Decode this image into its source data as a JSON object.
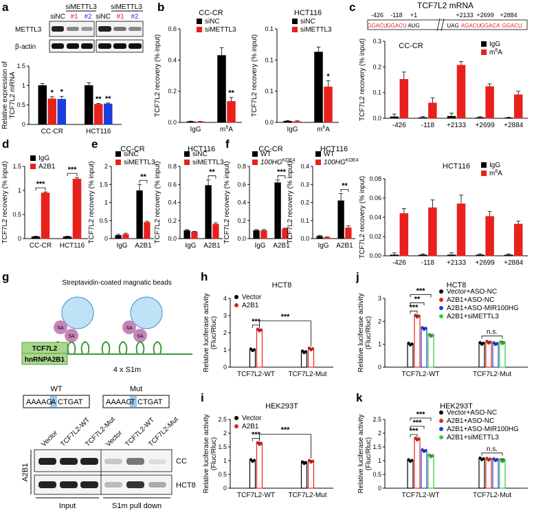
{
  "panel_letters": [
    "a",
    "b",
    "c",
    "d",
    "e",
    "f",
    "g",
    "h",
    "i",
    "j",
    "k"
  ],
  "colors": {
    "black": "#000000",
    "red": "#e8211d",
    "blue": "#1a3ee0",
    "green": "#33cc33",
    "gray": "#f1f1f1"
  },
  "chart_data": [
    {
      "id": "a",
      "type": "bar",
      "title": "",
      "ylabel": "Relative expression of TCF7L2 mRNA",
      "categories": [
        "CC-CR",
        "HCT116"
      ],
      "ylim": [
        0,
        1.5
      ],
      "yticks": [
        0,
        0.5,
        1.0,
        1.5
      ],
      "series": [
        {
          "name": "siNC",
          "color": "#000000",
          "values": [
            1.0,
            1.0
          ],
          "err": [
            0.05,
            0.07
          ]
        },
        {
          "name": "#1",
          "color": "#e8211d",
          "values": [
            0.66,
            0.52
          ],
          "err": [
            0.05,
            0.02
          ],
          "sig": [
            "*",
            "**"
          ]
        },
        {
          "name": "#2",
          "color": "#1a3ee0",
          "values": [
            0.65,
            0.53
          ],
          "err": [
            0.07,
            0.02
          ],
          "sig": [
            "*",
            "**"
          ]
        }
      ]
    },
    {
      "id": "b1",
      "type": "bar",
      "title": "CC-CR",
      "ylabel": "TCF7L2 recovery (% input)",
      "categories": [
        "IgG",
        "m6A"
      ],
      "ylim": [
        0,
        0.6
      ],
      "yticks": [
        0.0,
        0.2,
        0.4,
        0.6
      ],
      "series": [
        {
          "name": "siNC",
          "color": "#000000",
          "values": [
            0.005,
            0.43
          ],
          "err": [
            0.003,
            0.05
          ]
        },
        {
          "name": "siMETTL3",
          "color": "#e8211d",
          "values": [
            0.004,
            0.135
          ],
          "err": [
            0.002,
            0.025
          ],
          "sig": [
            "",
            "**"
          ]
        }
      ]
    },
    {
      "id": "b2",
      "type": "bar",
      "title": "HCT116",
      "ylabel": "TCF7L2 recovery (% input)",
      "categories": [
        "IgG",
        "m6A"
      ],
      "ylim": [
        0,
        0.15
      ],
      "yticks": [
        0.0,
        0.05,
        0.1,
        0.15
      ],
      "series": [
        {
          "name": "siNC",
          "color": "#000000",
          "values": [
            0.002,
            0.113
          ],
          "err": [
            0.001,
            0.008
          ]
        },
        {
          "name": "siMETTL3",
          "color": "#e8211d",
          "values": [
            0.0015,
            0.057
          ],
          "err": [
            0.001,
            0.01
          ],
          "sig": [
            "",
            "*"
          ]
        }
      ]
    },
    {
      "id": "c1",
      "type": "bar",
      "title": "CC-CR",
      "ylabel": "TCF7L2 recovery (% input)",
      "categories": [
        "-426",
        "-118",
        "+2133",
        "+2699",
        "+2884"
      ],
      "ylim": [
        0,
        0.3
      ],
      "yticks": [
        0.0,
        0.1,
        0.2,
        0.3
      ],
      "series": [
        {
          "name": "IgG",
          "color": "#000000",
          "values": [
            0.006,
            0.003,
            0.008,
            0.003,
            0.002
          ],
          "err": [
            0.01,
            0.004,
            0.012,
            0.003,
            0.002
          ]
        },
        {
          "name": "m6A",
          "color": "#e8211d",
          "values": [
            0.152,
            0.06,
            0.207,
            0.124,
            0.092
          ],
          "err": [
            0.028,
            0.02,
            0.014,
            0.01,
            0.013
          ]
        }
      ]
    },
    {
      "id": "c2",
      "type": "bar",
      "title": "HCT116",
      "ylabel": "TCF7L2 recovery (% input)",
      "categories": [
        "-426",
        "-118",
        "+2133",
        "+2699",
        "+2884"
      ],
      "ylim": [
        0,
        0.08
      ],
      "yticks": [
        0.0,
        0.02,
        0.04,
        0.06,
        0.08
      ],
      "series": [
        {
          "name": "IgG",
          "color": "#000000",
          "values": [
            0.001,
            0.001,
            0.001,
            0.001,
            0.001
          ],
          "err": [
            0.002,
            0.001,
            0.002,
            0.001,
            0.001
          ]
        },
        {
          "name": "m6A",
          "color": "#e8211d",
          "values": [
            0.044,
            0.05,
            0.054,
            0.041,
            0.033
          ],
          "err": [
            0.005,
            0.008,
            0.009,
            0.005,
            0.003
          ]
        }
      ]
    },
    {
      "id": "d",
      "type": "bar",
      "title": "",
      "ylabel": "TCF7L2 recovery (% input)",
      "categories": [
        "CC-CR",
        "HCT116"
      ],
      "ylim": [
        0,
        1.5
      ],
      "yticks": [
        0.0,
        0.5,
        1.0,
        1.5
      ],
      "series": [
        {
          "name": "IgG",
          "color": "#000000",
          "values": [
            0.04,
            0.04
          ],
          "err": [
            0.01,
            0.01
          ]
        },
        {
          "name": "A2B1",
          "color": "#e8211d",
          "values": [
            0.95,
            1.24
          ],
          "err": [
            0.02,
            0.03
          ]
        }
      ],
      "brackets": [
        "***",
        "***"
      ]
    },
    {
      "id": "e1",
      "type": "bar",
      "title": "CC-CR",
      "ylabel": "TCF7L2 recovery (% input)",
      "categories": [
        "IgG",
        "A2B1"
      ],
      "ylim": [
        0,
        2.0
      ],
      "yticks": [
        0.0,
        0.5,
        1.0,
        1.5,
        2.0
      ],
      "series": [
        {
          "name": "siNC",
          "color": "#000000",
          "values": [
            0.09,
            1.33
          ],
          "err": [
            0.03,
            0.17
          ]
        },
        {
          "name": "siMETTL3",
          "color": "#e8211d",
          "values": [
            0.12,
            0.45
          ],
          "err": [
            0.03,
            0.03
          ]
        }
      ],
      "brackets": [
        "",
        "**"
      ]
    },
    {
      "id": "e2",
      "type": "bar",
      "title": "HCT116",
      "ylabel": "TCF7L2 recovery (% input)",
      "categories": [
        "IgG",
        "A2B1"
      ],
      "ylim": [
        0,
        0.8
      ],
      "yticks": [
        0.0,
        0.2,
        0.4,
        0.6,
        0.8
      ],
      "series": [
        {
          "name": "siNC",
          "color": "#000000",
          "values": [
            0.09,
            0.59
          ],
          "err": [
            0.01,
            0.06
          ]
        },
        {
          "name": "siMETTL3",
          "color": "#e8211d",
          "values": [
            0.075,
            0.16
          ],
          "err": [
            0.005,
            0.015
          ]
        }
      ],
      "brackets": [
        "",
        "**"
      ]
    },
    {
      "id": "f1",
      "type": "bar",
      "title": "CC-CR",
      "ylabel": "TCF7L2 recovery (% input)",
      "categories": [
        "IgG",
        "A2B1"
      ],
      "ylim": [
        0,
        0.8
      ],
      "yticks": [
        0.0,
        0.2,
        0.4,
        0.6,
        0.8
      ],
      "series": [
        {
          "name": "WT",
          "color": "#000000",
          "values": [
            0.09,
            0.62
          ],
          "err": [
            0.01,
            0.03
          ]
        },
        {
          "name": "100HG KOE4",
          "color": "#e8211d",
          "values": [
            0.09,
            0.11
          ],
          "err": [
            0.01,
            0.005
          ]
        }
      ],
      "brackets": [
        "",
        "***"
      ]
    },
    {
      "id": "f2",
      "type": "bar",
      "title": "HCT116",
      "ylabel": "TCF7L2 recovery (% input)",
      "categories": [
        "IgG",
        "A2B1"
      ],
      "ylim": [
        0,
        0.4
      ],
      "yticks": [
        0.0,
        0.1,
        0.2,
        0.3,
        0.4
      ],
      "series": [
        {
          "name": "WT",
          "color": "#000000",
          "values": [
            0.013,
            0.21
          ],
          "err": [
            0.005,
            0.04
          ]
        },
        {
          "name": "100HG KOE4",
          "color": "#e8211d",
          "values": [
            0.006,
            0.06
          ],
          "err": [
            0.003,
            0.01
          ]
        }
      ],
      "brackets": [
        "",
        "**"
      ]
    },
    {
      "id": "h",
      "type": "bar",
      "title": "HCT8",
      "ylabel": "Relative luciferase activity (Fluc/Rluc)",
      "categories": [
        "TCF7L2-WT",
        "TCF7L2-Mut"
      ],
      "ylim": [
        0,
        4
      ],
      "yticks": [
        0,
        1,
        2,
        3,
        4
      ],
      "series": [
        {
          "name": "Vector",
          "color": "#000000",
          "values": [
            1.0,
            0.88
          ],
          "err": [
            0,
            0.05
          ]
        },
        {
          "name": "A2B1",
          "color": "#e8211d",
          "values": [
            2.15,
            1.05
          ],
          "err": [
            0.06,
            0.04
          ]
        }
      ],
      "brackets": [
        "***"
      ],
      "cross": "***"
    },
    {
      "id": "i",
      "type": "bar",
      "title": "HEK293T",
      "ylabel": "Relative luciferase activity (Fluc/Rluc)",
      "categories": [
        "TCF7L2-WT",
        "TCF7L2-Mut"
      ],
      "ylim": [
        0,
        2.5
      ],
      "yticks": [
        0.0,
        0.5,
        1.0,
        1.5,
        2.0,
        2.5
      ],
      "series": [
        {
          "name": "Vector",
          "color": "#000000",
          "values": [
            1.0,
            0.92
          ],
          "err": [
            0,
            0.05
          ]
        },
        {
          "name": "A2B1",
          "color": "#e8211d",
          "values": [
            1.62,
            0.97
          ],
          "err": [
            0.04,
            0.04
          ]
        }
      ],
      "brackets": [
        "***"
      ],
      "cross": "***"
    },
    {
      "id": "j",
      "type": "bar",
      "title": "HCT8",
      "ylabel": "Relative luciferase activity (Fluc/Rluc)",
      "categories": [
        "TCF7L2-WT",
        "TCF7L2-Mut"
      ],
      "ylim": [
        0,
        3
      ],
      "yticks": [
        0,
        1,
        2,
        3
      ],
      "series": [
        {
          "name": "Vector+ASO-NC",
          "color": "#000000",
          "values": [
            1.0,
            1.03
          ],
          "err": [
            0,
            0.04
          ]
        },
        {
          "name": "A2B1+ASO-NC",
          "color": "#e8211d",
          "values": [
            2.22,
            1.08
          ],
          "err": [
            0.05,
            0.04
          ]
        },
        {
          "name": "A2B1+ASO-MIR100HG",
          "color": "#1a3ee0",
          "values": [
            1.68,
            1.02
          ],
          "err": [
            0.05,
            0.03
          ]
        },
        {
          "name": "A2B1+siMETTL3",
          "color": "#33cc33",
          "values": [
            1.38,
            1.06
          ],
          "err": [
            0.05,
            0.06
          ]
        }
      ],
      "stars": [
        "***",
        "**",
        "***"
      ],
      "ns": "n.s."
    },
    {
      "id": "k",
      "type": "bar",
      "title": "HEK293T",
      "ylabel": "Relative luciferase activity (Fluc/Rluc)",
      "categories": [
        "TCF7L2-WT",
        "TCF7L2-Mut"
      ],
      "ylim": [
        0,
        2.5
      ],
      "yticks": [
        0.0,
        0.5,
        1.0,
        1.5,
        2.0,
        2.5
      ],
      "series": [
        {
          "name": "Vector+ASO-NC",
          "color": "#000000",
          "values": [
            1.0,
            1.06
          ],
          "err": [
            0,
            0.02
          ]
        },
        {
          "name": "A2B1+ASO-NC",
          "color": "#e8211d",
          "values": [
            1.78,
            1.05
          ],
          "err": [
            0.02,
            0.02
          ]
        },
        {
          "name": "A2B1+ASO-MIR100HG",
          "color": "#1a3ee0",
          "values": [
            1.36,
            1.03
          ],
          "err": [
            0.02,
            0.02
          ]
        },
        {
          "name": "A2B1+siMETTL3",
          "color": "#33cc33",
          "values": [
            1.17,
            1.0
          ],
          "err": [
            0.03,
            0.07
          ]
        }
      ],
      "stars": [
        "***",
        "***",
        "***"
      ],
      "ns": "n.s."
    }
  ],
  "blot_a": {
    "group_labels": [
      "siMETTL3",
      "siMETTL3"
    ],
    "lane_labels": [
      "siNC",
      "#1",
      "#2",
      "siNC",
      "#1",
      "#2"
    ],
    "rows": [
      "METTL3",
      "β-actin"
    ]
  },
  "mrna_c": {
    "title": "TCF7L2 mRNA",
    "sites": [
      "-426",
      "-118",
      "+1",
      "+2133",
      "+2699",
      "+2884"
    ],
    "seqs": [
      "GGACU",
      "GGACU",
      "AUG",
      "UAG",
      "AGACU",
      "GGACA",
      "GGACU"
    ]
  },
  "schematic_g": {
    "beads_label": "Streptavidin-coated magnatic beads",
    "sa": "SA",
    "tcf": "TCF7L2",
    "hn": "hnRNPA2B1",
    "s1m": "4 x S1m",
    "wt_label": "WT",
    "mut_label": "Mut",
    "wt_seq": [
      "AAAAG",
      "A",
      "CTGAT"
    ],
    "mut_seq": [
      "AAAAG",
      "T",
      "CTGAT"
    ]
  },
  "blot_g": {
    "lanes": [
      "Vector",
      "TCF7L2-WT",
      "TCF7L2-Mut",
      "Vector",
      "TCF7L2-WT",
      "TCF7L2-Mut"
    ],
    "side": "A2B1",
    "rows": [
      "CC",
      "HCT8"
    ],
    "bottom": [
      "Input",
      "S1m pull down"
    ]
  }
}
